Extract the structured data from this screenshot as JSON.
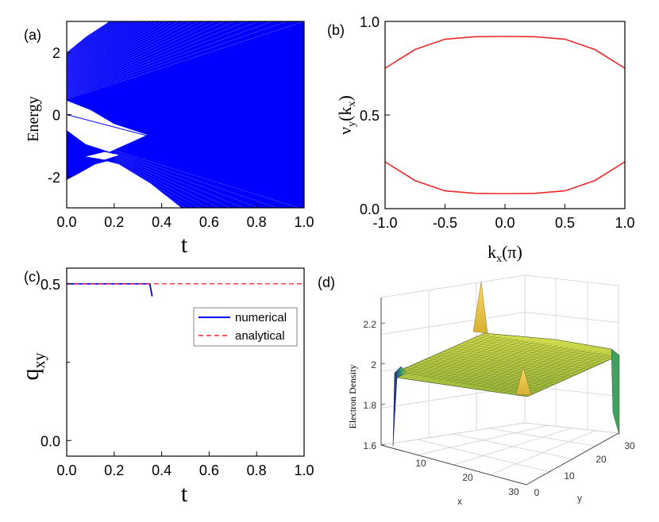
{
  "chart_data": [
    {
      "panel": "(a)",
      "type": "line",
      "xlabel": "t",
      "ylabel": "Energy",
      "xlim": [
        0.0,
        1.0
      ],
      "ylim": [
        -3.0,
        3.0
      ],
      "xticks": [
        "0.0",
        "0.2",
        "0.4",
        "0.6",
        "0.8",
        "1.0"
      ],
      "yticks": [
        "2",
        "0",
        "-2"
      ],
      "series_color": "#0000ff",
      "bands": {
        "upper_at_t0": [
          0.4,
          2.1
        ],
        "lower_at_t0": [
          -2.1,
          -0.5
        ],
        "zero_mode": {
          "x": [
            0.0,
            0.35
          ],
          "y": [
            0.0,
            -0.7
          ]
        }
      },
      "grid": false
    },
    {
      "panel": "(b)",
      "type": "line",
      "xlabel": "kx(π)",
      "ylabel": "νy(kx)",
      "xlim": [
        -1.0,
        1.0
      ],
      "ylim": [
        0.0,
        1.0
      ],
      "xticks": [
        "-1.0",
        "-0.5",
        "0.0",
        "0.5",
        "1.0"
      ],
      "yticks": [
        "1.0",
        "0.5",
        "0.0"
      ],
      "x": [
        -1.0,
        -0.9,
        -0.75,
        -0.5,
        -0.25,
        0.0,
        0.25,
        0.5,
        0.75,
        0.9,
        1.0
      ],
      "series": [
        {
          "color": "#e82a2a",
          "values": [
            0.75,
            0.79,
            0.85,
            0.905,
            0.918,
            0.92,
            0.918,
            0.905,
            0.85,
            0.79,
            0.75
          ]
        },
        {
          "color": "#e82a2a",
          "values": [
            0.25,
            0.21,
            0.15,
            0.095,
            0.082,
            0.08,
            0.082,
            0.095,
            0.15,
            0.21,
            0.25
          ]
        }
      ],
      "grid": false
    },
    {
      "panel": "(c)",
      "type": "line",
      "xlabel": "t",
      "ylabel": "qxy",
      "xlim": [
        0.0,
        1.0
      ],
      "ylim": [
        -0.05,
        0.55
      ],
      "xticks": [
        "0.0",
        "0.2",
        "0.4",
        "0.6",
        "0.8",
        "1.0"
      ],
      "yticks": [
        "0.5",
        "0.0"
      ],
      "legend": {
        "position": "upper-right",
        "entries": [
          "numerical",
          "analytical"
        ]
      },
      "series": [
        {
          "name": "numerical",
          "color": "#0000ff",
          "style": "solid",
          "x": [
            0.0,
            0.35,
            0.36
          ],
          "y": [
            0.5,
            0.5,
            0.46
          ]
        },
        {
          "name": "analytical",
          "color": "#ff2020",
          "style": "dashed",
          "x": [
            0.0,
            1.0
          ],
          "y": [
            0.5,
            0.5
          ]
        }
      ],
      "grid": false
    },
    {
      "panel": "(d)",
      "type": "surface",
      "xlabel": "x",
      "ylabel": "y",
      "zlabel": "Electron Density",
      "xticks": [
        "10",
        "20",
        "30"
      ],
      "yticks": [
        "0",
        "10",
        "20",
        "30"
      ],
      "zticks": [
        "2.2",
        "2",
        "1.8",
        "1.6"
      ],
      "colors": [
        "#1a1a8c",
        "#3fa060",
        "#c8d846",
        "#f5c84a"
      ],
      "grid": true
    }
  ],
  "panel_labels": [
    "(a)",
    "(b)",
    "(c)",
    "(d)"
  ]
}
